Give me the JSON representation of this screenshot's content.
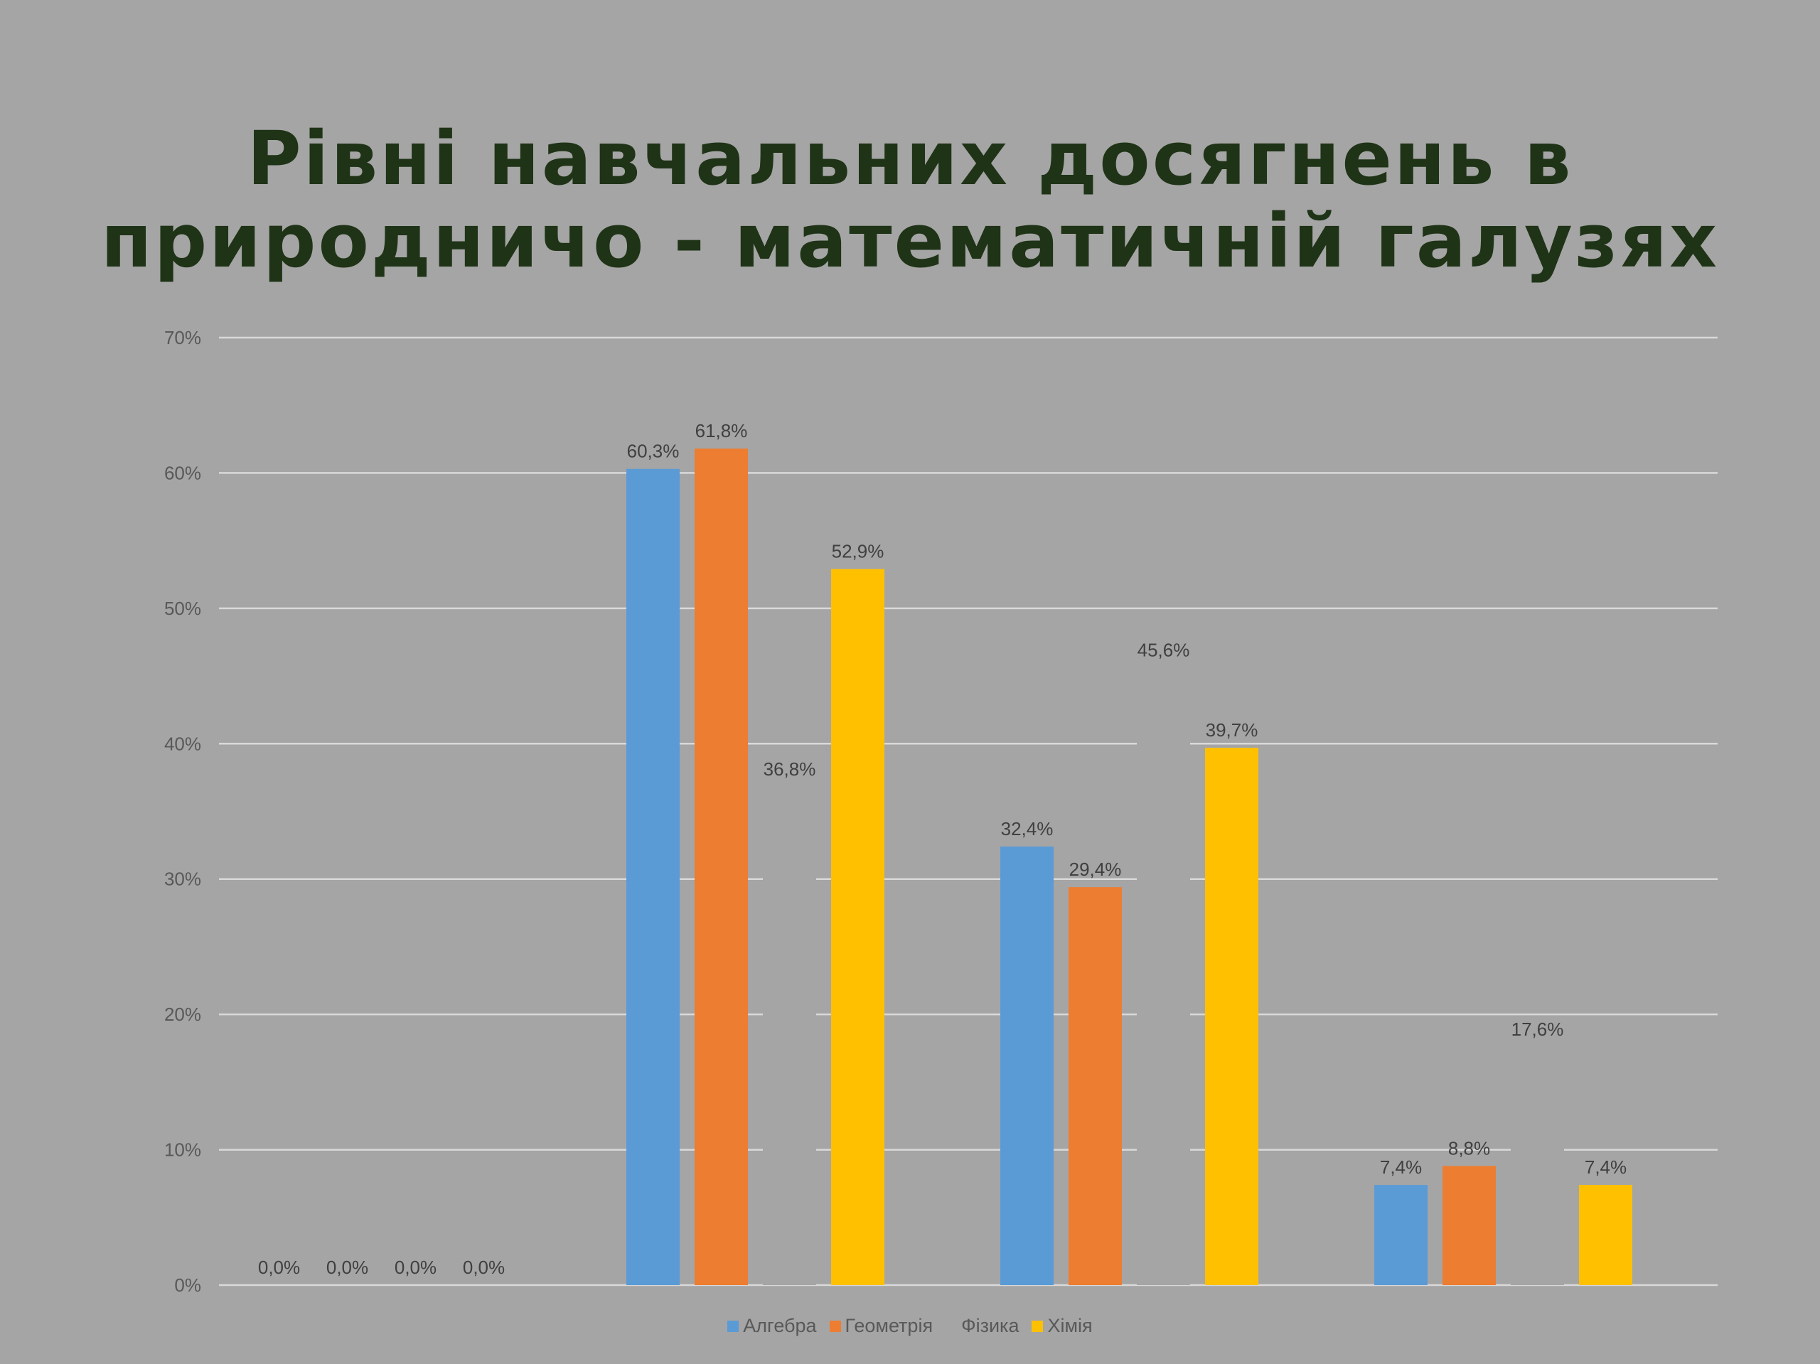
{
  "title": {
    "line1": "Рівні навчальних досягнень в",
    "line2": "природничо - математичній галузях"
  },
  "chart_data": {
    "type": "bar",
    "categories": [
      "",
      "",
      "",
      ""
    ],
    "ylim": [
      0,
      70
    ],
    "yticks": [
      "0%",
      "10%",
      "20%",
      "30%",
      "40%",
      "50%",
      "60%",
      "70%"
    ],
    "grid": true,
    "legend_position": "bottom",
    "series": [
      {
        "name": "Алгебра",
        "color": "#5b9bd5",
        "values": [
          0.0,
          60.3,
          32.4,
          7.4
        ],
        "labels": [
          "0,0%",
          "60,3%",
          "32,4%",
          "7,4%"
        ]
      },
      {
        "name": "Геометрія",
        "color": "#ed7d31",
        "values": [
          0.0,
          61.8,
          29.4,
          8.8
        ],
        "labels": [
          "0,0%",
          "61,8%",
          "29,4%",
          "8,8%"
        ]
      },
      {
        "name": "Фізика",
        "color": "#a5a5a5",
        "values": [
          0.0,
          36.8,
          45.6,
          17.6
        ],
        "labels": [
          "0,0%",
          "36,8%",
          "45,6%",
          "17,6%"
        ]
      },
      {
        "name": "Хімія",
        "color": "#ffc000",
        "values": [
          0.0,
          52.9,
          39.7,
          7.4
        ],
        "labels": [
          "0,0%",
          "52,9%",
          "39,7%",
          "7,4%"
        ]
      }
    ]
  }
}
